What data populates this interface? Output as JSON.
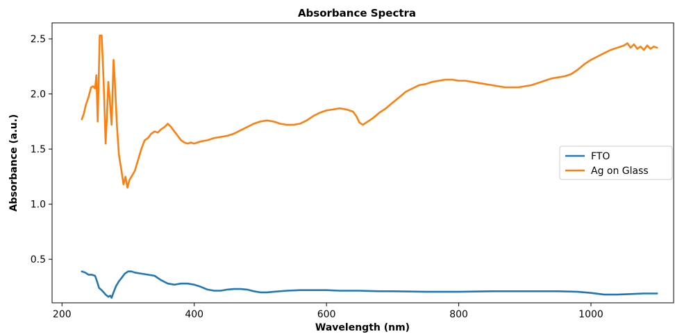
{
  "chart_data": {
    "type": "line",
    "title": "Absorbance Spectra",
    "xlabel": "Wavelength (nm)",
    "ylabel": "Absorbance (a.u.)",
    "xlim": [
      185,
      1125
    ],
    "ylim": [
      0.105,
      2.645
    ],
    "xticks": [
      200,
      400,
      600,
      800,
      1000
    ],
    "yticks": [
      0.5,
      1.0,
      1.5,
      2.0,
      2.5
    ],
    "xtick_labels": [
      "200",
      "400",
      "600",
      "800",
      "1000"
    ],
    "ytick_labels": [
      "0.5",
      "1.0",
      "1.5",
      "2.0",
      "2.5"
    ],
    "grid": false,
    "legend_position": "center-right",
    "series": [
      {
        "name": "FTO",
        "color": "#1f77b4",
        "x": [
          230,
          235,
          240,
          245,
          250,
          253,
          256,
          260,
          263,
          266,
          270,
          273,
          275,
          278,
          282,
          286,
          290,
          295,
          300,
          305,
          310,
          320,
          330,
          340,
          350,
          360,
          370,
          380,
          390,
          400,
          410,
          420,
          430,
          440,
          450,
          460,
          470,
          480,
          490,
          500,
          510,
          520,
          540,
          560,
          580,
          600,
          620,
          640,
          650,
          660,
          680,
          700,
          750,
          800,
          850,
          900,
          950,
          980,
          1000,
          1020,
          1040,
          1060,
          1080,
          1100
        ],
        "y": [
          0.39,
          0.38,
          0.36,
          0.36,
          0.35,
          0.3,
          0.24,
          0.22,
          0.2,
          0.18,
          0.16,
          0.17,
          0.15,
          0.2,
          0.26,
          0.3,
          0.33,
          0.37,
          0.39,
          0.39,
          0.38,
          0.37,
          0.36,
          0.35,
          0.31,
          0.28,
          0.27,
          0.28,
          0.28,
          0.27,
          0.25,
          0.225,
          0.215,
          0.215,
          0.225,
          0.23,
          0.23,
          0.225,
          0.21,
          0.2,
          0.2,
          0.205,
          0.215,
          0.22,
          0.22,
          0.22,
          0.215,
          0.215,
          0.215,
          0.213,
          0.21,
          0.21,
          0.205,
          0.205,
          0.21,
          0.21,
          0.21,
          0.205,
          0.195,
          0.18,
          0.18,
          0.185,
          0.19,
          0.19
        ]
      },
      {
        "name": "Ag on Glass",
        "color": "#ff7f0e",
        "x": [
          230,
          233,
          236,
          240,
          244,
          247,
          250,
          252,
          254,
          257,
          260,
          263,
          266,
          268,
          270,
          272,
          275,
          278,
          280,
          283,
          286,
          290,
          293,
          296,
          299,
          302,
          305,
          310,
          315,
          320,
          325,
          330,
          335,
          340,
          345,
          350,
          355,
          360,
          365,
          370,
          375,
          380,
          385,
          390,
          395,
          400,
          410,
          420,
          430,
          440,
          450,
          460,
          470,
          480,
          490,
          500,
          510,
          520,
          530,
          540,
          550,
          560,
          570,
          580,
          590,
          600,
          610,
          620,
          630,
          640,
          645,
          650,
          655,
          660,
          670,
          680,
          690,
          700,
          710,
          720,
          730,
          740,
          750,
          760,
          770,
          780,
          790,
          800,
          810,
          820,
          830,
          840,
          850,
          860,
          870,
          880,
          890,
          900,
          910,
          920,
          930,
          940,
          950,
          960,
          970,
          980,
          990,
          1000,
          1010,
          1020,
          1030,
          1040,
          1050,
          1055,
          1060,
          1065,
          1070,
          1075,
          1080,
          1085,
          1090,
          1095,
          1100
        ],
        "y": [
          1.77,
          1.82,
          1.9,
          1.97,
          2.06,
          2.07,
          2.05,
          2.17,
          1.75,
          2.53,
          2.53,
          2.1,
          1.55,
          1.8,
          2.11,
          1.97,
          1.72,
          2.31,
          2.1,
          1.72,
          1.45,
          1.3,
          1.18,
          1.25,
          1.15,
          1.22,
          1.25,
          1.3,
          1.4,
          1.5,
          1.58,
          1.6,
          1.64,
          1.66,
          1.65,
          1.68,
          1.7,
          1.73,
          1.7,
          1.66,
          1.62,
          1.58,
          1.56,
          1.55,
          1.56,
          1.55,
          1.57,
          1.58,
          1.6,
          1.61,
          1.62,
          1.64,
          1.67,
          1.7,
          1.73,
          1.75,
          1.76,
          1.75,
          1.73,
          1.72,
          1.72,
          1.73,
          1.76,
          1.8,
          1.83,
          1.85,
          1.86,
          1.87,
          1.86,
          1.84,
          1.8,
          1.74,
          1.72,
          1.74,
          1.78,
          1.83,
          1.87,
          1.92,
          1.97,
          2.02,
          2.05,
          2.08,
          2.09,
          2.11,
          2.12,
          2.13,
          2.13,
          2.12,
          2.12,
          2.11,
          2.1,
          2.09,
          2.08,
          2.07,
          2.06,
          2.06,
          2.06,
          2.07,
          2.08,
          2.1,
          2.12,
          2.14,
          2.15,
          2.16,
          2.18,
          2.22,
          2.27,
          2.31,
          2.34,
          2.37,
          2.4,
          2.42,
          2.44,
          2.46,
          2.42,
          2.45,
          2.41,
          2.43,
          2.4,
          2.44,
          2.41,
          2.43,
          2.42
        ]
      }
    ]
  }
}
